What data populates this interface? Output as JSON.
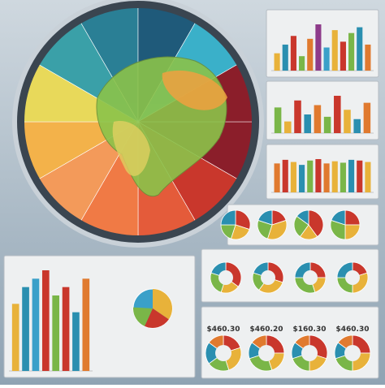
{
  "bar_panels": [
    {
      "colors": [
        "#e8b23a",
        "#2a8fb0",
        "#c9372c",
        "#7ab648",
        "#e07a2f",
        "#8e3b8a",
        "#3aa0c9",
        "#e8b23a",
        "#c9372c",
        "#7ab648",
        "#2a8fb0",
        "#e07a2f"
      ],
      "values": [
        30,
        45,
        60,
        25,
        55,
        80,
        40,
        70,
        50,
        65,
        75,
        45
      ]
    },
    {
      "colors": [
        "#7ab648",
        "#e8b23a",
        "#c9372c",
        "#2a8fb0",
        "#e07a2f",
        "#7ab648",
        "#c9372c",
        "#e8b23a",
        "#2a8fb0",
        "#e07a2f"
      ],
      "values": [
        55,
        25,
        70,
        40,
        60,
        35,
        80,
        50,
        30,
        65
      ]
    },
    {
      "colors": [
        "#e07a2f",
        "#c9372c",
        "#e8b23a",
        "#2a8fb0",
        "#7ab648",
        "#c9372c",
        "#e07a2f",
        "#e8b23a",
        "#7ab648",
        "#2a8fb0",
        "#c9372c",
        "#e8b23a"
      ],
      "values": [
        40,
        45,
        42,
        38,
        44,
        46,
        40,
        43,
        41,
        45,
        44,
        42
      ]
    },
    {
      "colors": [
        "#e8b23a",
        "#2a8fb0",
        "#3aa0c9",
        "#c9372c",
        "#7ab648",
        "#c9372c",
        "#2a8fb0",
        "#e07a2f"
      ],
      "values": [
        40,
        50,
        55,
        60,
        45,
        50,
        35,
        55
      ]
    }
  ],
  "pie_colors": [
    "#c9372c",
    "#e8b23a",
    "#7ab648",
    "#2a8fb0",
    "#e07a2f",
    "#8a8f96"
  ],
  "pie_rows": [
    [
      [
        30,
        25,
        20,
        25
      ],
      [
        20,
        35,
        25,
        20
      ],
      [
        40,
        20,
        25,
        15
      ],
      [
        25,
        25,
        30,
        20
      ]
    ],
    [
      [
        35,
        20,
        25,
        20
      ],
      [
        30,
        30,
        20,
        20
      ],
      [
        25,
        20,
        30,
        25
      ],
      [
        20,
        30,
        25,
        25
      ]
    ],
    [
      [
        20,
        25,
        20,
        20,
        15
      ],
      [
        25,
        20,
        25,
        15,
        15
      ],
      [
        30,
        20,
        20,
        15,
        15
      ],
      [
        25,
        25,
        20,
        15,
        15
      ]
    ]
  ],
  "prices": [
    "$460.30",
    "$460.20",
    "$160.30",
    "$460.30"
  ]
}
